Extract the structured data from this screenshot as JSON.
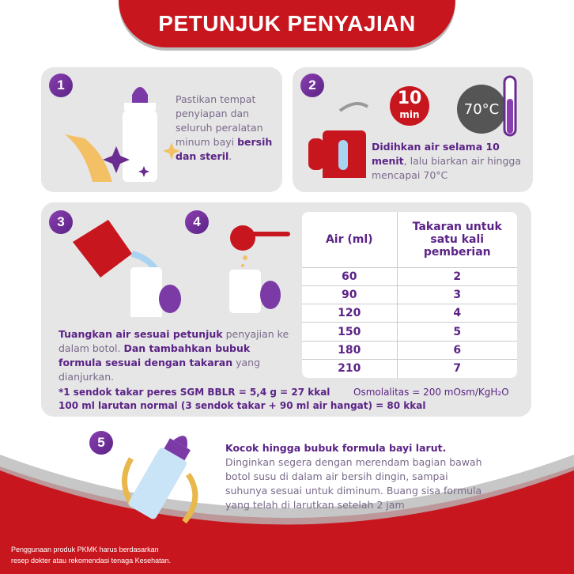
{
  "title": "PETUNJUK PENYAJIAN",
  "colors": {
    "brand_red": "#c8161e",
    "purple": "#5b2386",
    "panel": "#e6e6e6"
  },
  "steps": [
    {
      "number": "1",
      "text_pre": "Pastikan tempat penyiapan dan seluruh peralatan minum bayi ",
      "text_bold": "bersih dan steril",
      "text_post": ".",
      "icon": "clean-bottle-hands"
    },
    {
      "number": "2",
      "timer_value": "10",
      "timer_unit": "min",
      "temperature": "70°C",
      "text_bold": "Didihkan air selama 10 menit",
      "text_post": ", lalu biarkan air hingga mencapai 70°C",
      "icon": "kettle-thermometer"
    },
    {
      "number": "3",
      "icon": "pour-water"
    },
    {
      "number": "4",
      "icon": "spoon-powder"
    },
    {
      "number": "5",
      "text_bold": "Kocok hingga bubuk formula bayi larut.",
      "text_post": " Dinginkan segera dengan merendam bagian bawah botol susu di dalam air bersih dingin, sampai suhunya sesuai untuk diminum. Buang sisa formula yang telah di larutkan setelah 2 jam",
      "icon": "shake-bottle"
    }
  ],
  "step34_text": {
    "b1": "Tuangkan air sesuai petunjuk",
    "t1": " penyajian ke dalam botol. ",
    "b2": "Dan tambahkan bubuk formula sesuai dengan takaran",
    "t2": " yang dianjurkan."
  },
  "table": {
    "headers": [
      "Air (ml)",
      "Takaran untuk satu kali pemberian"
    ],
    "rows": [
      [
        "60",
        "2"
      ],
      [
        "90",
        "3"
      ],
      [
        "120",
        "4"
      ],
      [
        "150",
        "5"
      ],
      [
        "180",
        "6"
      ],
      [
        "210",
        "7"
      ]
    ]
  },
  "notes": {
    "scoop": "*1 sendok takar peres SGM BBLR = 5,4 g = 27 kkal",
    "osmolality": "Osmolalitas = 200 mOsm/KgH₂O",
    "solution": "100 ml larutan normal (3 sendok takar + 90 ml air hangat) = 80 kkal"
  },
  "footer": {
    "line1": "Penggunaan produk PKMK harus berdasarkan",
    "line2": "resep dokter atau rekomendasi tenaga Kesehatan."
  }
}
